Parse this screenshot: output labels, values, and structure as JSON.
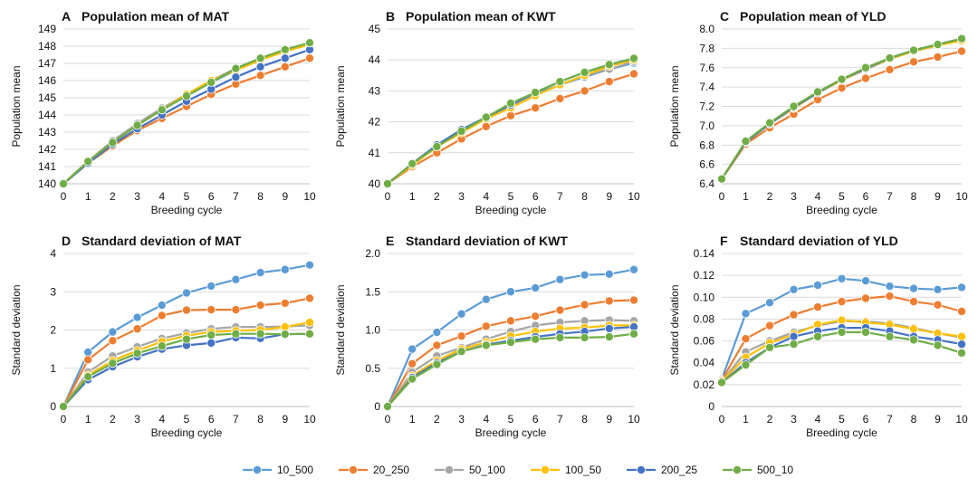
{
  "chart_data": [
    {
      "type": "line",
      "panel": "A",
      "title": "Population mean of MAT",
      "xlabel": "Breeding cycle",
      "ylabel": "Population mean",
      "x": [
        0,
        1,
        2,
        3,
        4,
        5,
        6,
        7,
        8,
        9,
        10
      ],
      "ylim": [
        140,
        149
      ],
      "yticks": [
        "140",
        "141",
        "142",
        "143",
        "144",
        "145",
        "146",
        "147",
        "148",
        "149"
      ],
      "series": [
        {
          "name": "10_500",
          "values": [
            140.0,
            141.3,
            142.5,
            143.4,
            144.3,
            145.1,
            145.9,
            146.6,
            147.2,
            147.7,
            148.1
          ]
        },
        {
          "name": "20_250",
          "values": [
            140.0,
            141.2,
            142.2,
            143.1,
            143.8,
            144.5,
            145.2,
            145.8,
            146.3,
            146.8,
            147.3
          ]
        },
        {
          "name": "50_100",
          "values": [
            140.0,
            141.3,
            142.5,
            143.5,
            144.4,
            145.2,
            146.0,
            146.7,
            147.3,
            147.8,
            148.2
          ]
        },
        {
          "name": "100_50",
          "values": [
            140.0,
            141.3,
            142.4,
            143.4,
            144.3,
            145.2,
            146.0,
            146.6,
            147.2,
            147.7,
            148.1
          ]
        },
        {
          "name": "200_25",
          "values": [
            140.0,
            141.2,
            142.3,
            143.2,
            144.0,
            144.8,
            145.5,
            146.2,
            146.8,
            147.3,
            147.8
          ]
        },
        {
          "name": "500_10",
          "values": [
            140.0,
            141.3,
            142.4,
            143.4,
            144.3,
            145.1,
            145.9,
            146.7,
            147.3,
            147.8,
            148.2
          ]
        }
      ]
    },
    {
      "type": "line",
      "panel": "B",
      "title": "Population mean of KWT",
      "xlabel": "Breeding cycle",
      "ylabel": "Population mean",
      "x": [
        0,
        1,
        2,
        3,
        4,
        5,
        6,
        7,
        8,
        9,
        10
      ],
      "ylim": [
        40,
        45
      ],
      "yticks": [
        "40",
        "41",
        "42",
        "43",
        "44",
        "45"
      ],
      "series": [
        {
          "name": "10_500",
          "values": [
            40.0,
            40.65,
            41.25,
            41.75,
            42.15,
            42.55,
            42.9,
            43.2,
            43.45,
            43.7,
            43.9
          ]
        },
        {
          "name": "20_250",
          "values": [
            40.0,
            40.55,
            41.0,
            41.45,
            41.85,
            42.2,
            42.45,
            42.75,
            43.0,
            43.3,
            43.55
          ]
        },
        {
          "name": "50_100",
          "values": [
            40.0,
            40.65,
            41.2,
            41.7,
            42.1,
            42.5,
            42.85,
            43.2,
            43.5,
            43.7,
            43.95
          ]
        },
        {
          "name": "100_50",
          "values": [
            40.0,
            40.6,
            41.2,
            41.65,
            42.1,
            42.45,
            42.85,
            43.2,
            43.5,
            43.8,
            44.0
          ]
        },
        {
          "name": "200_25",
          "values": [
            40.0,
            40.65,
            41.25,
            41.75,
            42.15,
            42.55,
            42.95,
            43.3,
            43.6,
            43.85,
            44.05
          ]
        },
        {
          "name": "500_10",
          "values": [
            40.0,
            40.65,
            41.2,
            41.7,
            42.15,
            42.6,
            42.95,
            43.3,
            43.6,
            43.85,
            44.05
          ]
        }
      ]
    },
    {
      "type": "line",
      "panel": "C",
      "title": "Population mean of YLD",
      "xlabel": "Breeding cycle",
      "ylabel": "Population mean",
      "x": [
        0,
        1,
        2,
        3,
        4,
        5,
        6,
        7,
        8,
        9,
        10
      ],
      "ylim": [
        6.4,
        8.0
      ],
      "yticks": [
        "6.4",
        "6.6",
        "6.8",
        "7.0",
        "7.2",
        "7.4",
        "7.6",
        "7.8",
        "8.0"
      ],
      "series": [
        {
          "name": "10_500",
          "values": [
            6.45,
            6.83,
            7.02,
            7.19,
            7.34,
            7.47,
            7.59,
            7.69,
            7.77,
            7.84,
            7.89
          ]
        },
        {
          "name": "20_250",
          "values": [
            6.45,
            6.81,
            6.98,
            7.12,
            7.27,
            7.39,
            7.49,
            7.58,
            7.66,
            7.71,
            7.77
          ]
        },
        {
          "name": "50_100",
          "values": [
            6.45,
            6.83,
            7.02,
            7.18,
            7.34,
            7.47,
            7.58,
            7.69,
            7.77,
            7.83,
            7.89
          ]
        },
        {
          "name": "100_50",
          "values": [
            6.45,
            6.83,
            7.02,
            7.18,
            7.34,
            7.47,
            7.59,
            7.69,
            7.77,
            7.83,
            7.88
          ]
        },
        {
          "name": "200_25",
          "values": [
            6.45,
            6.83,
            7.02,
            7.19,
            7.34,
            7.48,
            7.59,
            7.7,
            7.78,
            7.84,
            7.9
          ]
        },
        {
          "name": "500_10",
          "values": [
            6.45,
            6.84,
            7.03,
            7.2,
            7.35,
            7.48,
            7.6,
            7.7,
            7.78,
            7.84,
            7.9
          ]
        }
      ]
    },
    {
      "type": "line",
      "panel": "D",
      "title": "Standard deviation of MAT",
      "xlabel": "Breeding cycle",
      "ylabel": "Standard deviation",
      "x": [
        0,
        1,
        2,
        3,
        4,
        5,
        6,
        7,
        8,
        9,
        10
      ],
      "ylim": [
        0,
        4
      ],
      "yticks": [
        "0",
        "1",
        "2",
        "3",
        "4"
      ],
      "series": [
        {
          "name": "10_500",
          "values": [
            0,
            1.42,
            1.95,
            2.33,
            2.65,
            2.97,
            3.15,
            3.32,
            3.5,
            3.58,
            3.7
          ]
        },
        {
          "name": "20_250",
          "values": [
            0,
            1.22,
            1.72,
            2.03,
            2.38,
            2.52,
            2.53,
            2.53,
            2.65,
            2.7,
            2.83
          ]
        },
        {
          "name": "50_100",
          "values": [
            0,
            0.9,
            1.32,
            1.56,
            1.78,
            1.92,
            2.03,
            2.08,
            2.08,
            2.09,
            2.12
          ]
        },
        {
          "name": "100_50",
          "values": [
            0,
            0.82,
            1.2,
            1.46,
            1.7,
            1.85,
            1.95,
            1.98,
            2.0,
            2.08,
            2.2
          ]
        },
        {
          "name": "200_25",
          "values": [
            0,
            0.7,
            1.04,
            1.3,
            1.5,
            1.6,
            1.66,
            1.8,
            1.78,
            1.89,
            1.9
          ]
        },
        {
          "name": "500_10",
          "values": [
            0,
            0.78,
            1.13,
            1.39,
            1.58,
            1.76,
            1.87,
            1.9,
            1.9,
            1.89,
            1.9
          ]
        }
      ]
    },
    {
      "type": "line",
      "panel": "E",
      "title": "Standard deviation of KWT",
      "xlabel": "Breeding cycle",
      "ylabel": "Standard deviation",
      "x": [
        0,
        1,
        2,
        3,
        4,
        5,
        6,
        7,
        8,
        9,
        10
      ],
      "ylim": [
        0,
        2.0
      ],
      "yticks": [
        "0",
        "0.5",
        "1.0",
        "1.5",
        "2.0"
      ],
      "series": [
        {
          "name": "10_500",
          "values": [
            0,
            0.75,
            0.97,
            1.21,
            1.4,
            1.5,
            1.55,
            1.66,
            1.72,
            1.73,
            1.79
          ]
        },
        {
          "name": "20_250",
          "values": [
            0,
            0.56,
            0.8,
            0.92,
            1.05,
            1.12,
            1.18,
            1.26,
            1.33,
            1.38,
            1.39
          ]
        },
        {
          "name": "50_100",
          "values": [
            0,
            0.45,
            0.66,
            0.77,
            0.88,
            0.98,
            1.06,
            1.1,
            1.12,
            1.13,
            1.12
          ]
        },
        {
          "name": "100_50",
          "values": [
            0,
            0.4,
            0.6,
            0.75,
            0.84,
            0.92,
            0.98,
            1.02,
            1.03,
            1.06,
            1.06
          ]
        },
        {
          "name": "200_25",
          "values": [
            0,
            0.38,
            0.57,
            0.72,
            0.81,
            0.86,
            0.91,
            0.95,
            0.98,
            1.02,
            1.04
          ]
        },
        {
          "name": "500_10",
          "values": [
            0,
            0.36,
            0.55,
            0.72,
            0.8,
            0.84,
            0.88,
            0.9,
            0.9,
            0.91,
            0.95
          ]
        }
      ]
    },
    {
      "type": "line",
      "panel": "F",
      "title": "Standard deviation of YLD",
      "xlabel": "Breeding cycle",
      "ylabel": "Standard deviation",
      "x": [
        0,
        1,
        2,
        3,
        4,
        5,
        6,
        7,
        8,
        9,
        10
      ],
      "ylim": [
        0,
        0.14
      ],
      "yticks": [
        "0",
        "0.02",
        "0.04",
        "0.06",
        "0.08",
        "0.10",
        "0.12",
        "0.14"
      ],
      "series": [
        {
          "name": "10_500",
          "values": [
            0.025,
            0.085,
            0.095,
            0.107,
            0.111,
            0.117,
            0.115,
            0.11,
            0.108,
            0.107,
            0.109
          ]
        },
        {
          "name": "20_250",
          "values": [
            0.024,
            0.062,
            0.074,
            0.084,
            0.091,
            0.096,
            0.099,
            0.101,
            0.096,
            0.093,
            0.087
          ]
        },
        {
          "name": "50_100",
          "values": [
            0.023,
            0.05,
            0.06,
            0.068,
            0.074,
            0.078,
            0.078,
            0.076,
            0.072,
            0.067,
            0.063
          ]
        },
        {
          "name": "100_50",
          "values": [
            0.023,
            0.045,
            0.058,
            0.066,
            0.075,
            0.079,
            0.077,
            0.075,
            0.071,
            0.067,
            0.064
          ]
        },
        {
          "name": "200_25",
          "values": [
            0.022,
            0.04,
            0.054,
            0.064,
            0.069,
            0.072,
            0.072,
            0.069,
            0.064,
            0.061,
            0.057
          ]
        },
        {
          "name": "500_10",
          "values": [
            0.022,
            0.038,
            0.054,
            0.057,
            0.064,
            0.068,
            0.068,
            0.064,
            0.061,
            0.056,
            0.049
          ]
        }
      ]
    }
  ],
  "legend": {
    "position": "bottom",
    "items": [
      {
        "name": "10_500",
        "color": "#5B9BD5"
      },
      {
        "name": "20_250",
        "color": "#ED7D31"
      },
      {
        "name": "50_100",
        "color": "#A5A5A5"
      },
      {
        "name": "100_50",
        "color": "#FFC000"
      },
      {
        "name": "200_25",
        "color": "#4472C4"
      },
      {
        "name": "500_10",
        "color": "#70AD47"
      }
    ]
  },
  "colors": {
    "grid": "#D9D9D9",
    "axis": "#BFBFBF",
    "marker_edge": "#ffffff"
  }
}
